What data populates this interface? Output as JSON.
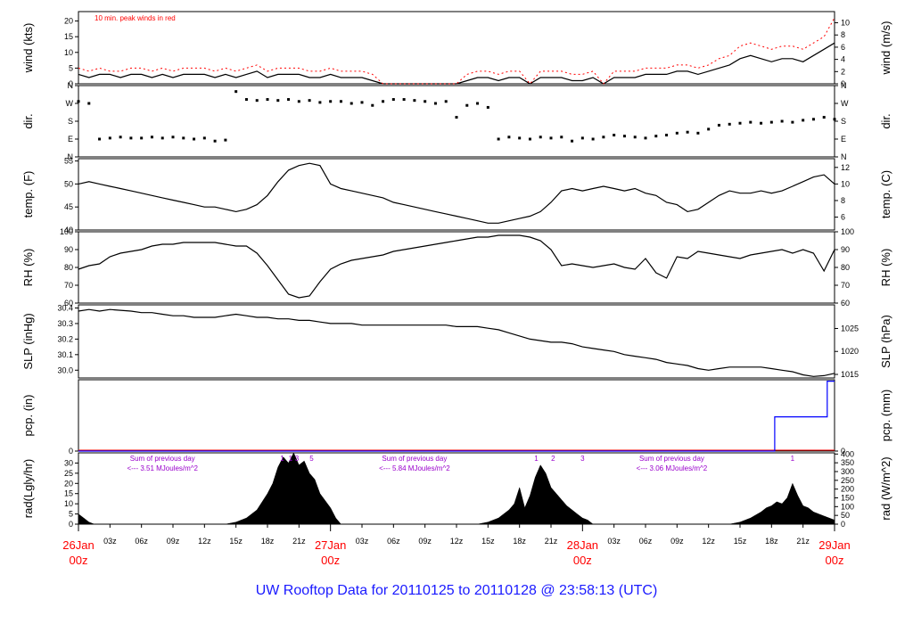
{
  "title": "UW Rooftop Data for 20110125  to  20110128 @ 23:58:13  (UTC)",
  "colors": {
    "title": "#1a1aff",
    "red": "#ff0000",
    "purple": "#9900cc",
    "blue": "#0000ff",
    "black": "#000000"
  },
  "x_axis": {
    "ticks": [
      "26Jan 00z",
      "03z",
      "06z",
      "09z",
      "12z",
      "15z",
      "18z",
      "21z",
      "27Jan 00z",
      "03z",
      "06z",
      "09z",
      "12z",
      "15z",
      "18z",
      "21z",
      "28Jan 00z",
      "03z",
      "06z",
      "09z",
      "12z",
      "15z",
      "18z",
      "21z",
      "29Jan 00z"
    ],
    "major": [
      {
        "hour": 0,
        "day": "26Jan",
        "time": "00z"
      },
      {
        "hour": 24,
        "day": "27Jan",
        "time": "00z"
      },
      {
        "hour": 48,
        "day": "28Jan",
        "time": "00z"
      },
      {
        "hour": 72,
        "day": "29Jan",
        "time": "00z"
      }
    ],
    "minor": [
      {
        "hour": 3,
        "label": "03z"
      },
      {
        "hour": 6,
        "label": "06z"
      },
      {
        "hour": 9,
        "label": "09z"
      },
      {
        "hour": 12,
        "label": "12z"
      },
      {
        "hour": 15,
        "label": "15z"
      },
      {
        "hour": 18,
        "label": "18z"
      },
      {
        "hour": 21,
        "label": "21z"
      },
      {
        "hour": 27,
        "label": "03z"
      },
      {
        "hour": 30,
        "label": "06z"
      },
      {
        "hour": 33,
        "label": "09z"
      },
      {
        "hour": 36,
        "label": "12z"
      },
      {
        "hour": 39,
        "label": "15z"
      },
      {
        "hour": 42,
        "label": "18z"
      },
      {
        "hour": 45,
        "label": "21z"
      },
      {
        "hour": 51,
        "label": "03z"
      },
      {
        "hour": 54,
        "label": "06z"
      },
      {
        "hour": 57,
        "label": "09z"
      },
      {
        "hour": 60,
        "label": "12z"
      },
      {
        "hour": 63,
        "label": "15z"
      },
      {
        "hour": 66,
        "label": "18z"
      },
      {
        "hour": 69,
        "label": "21z"
      }
    ]
  },
  "chart_data": [
    {
      "type": "line",
      "panel": "wind",
      "ylabel_left": "wind (kts)",
      "ylabel_right": "wind (m/s)",
      "ylim": [
        0,
        23
      ],
      "yticks_left": [
        "0",
        "5",
        "10",
        "15",
        "20"
      ],
      "yticks_right": [
        "0",
        "2",
        "4",
        "6",
        "8",
        "10"
      ],
      "annotation": "10 min. peak winds in red",
      "x": [
        0,
        1,
        2,
        3,
        4,
        5,
        6,
        7,
        8,
        9,
        10,
        11,
        12,
        13,
        14,
        15,
        16,
        17,
        18,
        19,
        20,
        21,
        22,
        23,
        24,
        25,
        26,
        27,
        28,
        29,
        30,
        31,
        32,
        33,
        34,
        35,
        36,
        37,
        38,
        39,
        40,
        41,
        42,
        43,
        44,
        45,
        46,
        47,
        48,
        49,
        50,
        51,
        52,
        53,
        54,
        55,
        56,
        57,
        58,
        59,
        60,
        61,
        62,
        63,
        64,
        65,
        66,
        67,
        68,
        69,
        70,
        71,
        72
      ],
      "series": [
        {
          "values": [
            3,
            2,
            3,
            3,
            2,
            3,
            3,
            2,
            3,
            2,
            3,
            3,
            3,
            2,
            3,
            2,
            3,
            4,
            2,
            3,
            3,
            3,
            2,
            2,
            3,
            2,
            2,
            2,
            1,
            0,
            0,
            0,
            0,
            0,
            0,
            0,
            0,
            1,
            2,
            2,
            1,
            2,
            2,
            0,
            2,
            2,
            2,
            1,
            1,
            2,
            0,
            2,
            2,
            2,
            3,
            3,
            3,
            4,
            4,
            3,
            4,
            5,
            6,
            8,
            9,
            8,
            7,
            8,
            8,
            7,
            9,
            11,
            13
          ]
        },
        {
          "values": [
            5,
            4,
            5,
            4,
            4,
            5,
            5,
            4,
            5,
            4,
            5,
            5,
            5,
            4,
            5,
            4,
            5,
            6,
            4,
            5,
            5,
            5,
            4,
            4,
            5,
            4,
            4,
            4,
            3,
            0,
            0,
            0,
            0,
            0,
            0,
            0,
            0,
            3,
            4,
            4,
            3,
            4,
            4,
            0,
            4,
            4,
            4,
            3,
            3,
            4,
            0,
            4,
            4,
            4,
            5,
            5,
            5,
            6,
            6,
            5,
            6,
            8,
            9,
            12,
            13,
            12,
            11,
            12,
            12,
            11,
            13,
            15,
            21
          ]
        }
      ]
    },
    {
      "type": "scatter",
      "panel": "dir",
      "ylabel_left": "dir.",
      "ylabel_right": "dir.",
      "ylim": [
        0,
        360
      ],
      "yticks_left": [
        "N",
        "E",
        "S",
        "W",
        "N"
      ],
      "yticks_right": [
        "N",
        "E",
        "S",
        "W",
        "N"
      ],
      "x": [
        0,
        1,
        2,
        3,
        4,
        5,
        6,
        7,
        8,
        9,
        10,
        11,
        12,
        13,
        14,
        15,
        16,
        17,
        18,
        19,
        20,
        21,
        22,
        23,
        24,
        25,
        26,
        27,
        28,
        29,
        30,
        31,
        32,
        33,
        34,
        35,
        36,
        37,
        38,
        39,
        40,
        41,
        42,
        43,
        44,
        45,
        46,
        47,
        48,
        49,
        50,
        51,
        52,
        53,
        54,
        55,
        56,
        57,
        58,
        59,
        60,
        61,
        62,
        63,
        64,
        65,
        66,
        67,
        68,
        69,
        70,
        71,
        72
      ],
      "values": [
        280,
        270,
        90,
        95,
        100,
        95,
        95,
        100,
        95,
        100,
        95,
        90,
        95,
        80,
        85,
        330,
        290,
        285,
        290,
        285,
        290,
        280,
        285,
        275,
        280,
        280,
        270,
        275,
        260,
        280,
        290,
        290,
        285,
        280,
        270,
        280,
        200,
        260,
        270,
        250,
        90,
        100,
        95,
        90,
        100,
        95,
        100,
        80,
        95,
        90,
        100,
        110,
        105,
        100,
        95,
        105,
        110,
        120,
        125,
        120,
        140,
        160,
        165,
        170,
        175,
        170,
        175,
        180,
        175,
        185,
        190,
        200,
        190
      ]
    },
    {
      "type": "line",
      "panel": "temp",
      "ylabel_left": "temp. (F)",
      "ylabel_right": "temp. (C)",
      "ylim": [
        40,
        55.5
      ],
      "yticks_left": [
        "40",
        "45",
        "50",
        "55"
      ],
      "yticks_right": [
        "6",
        "8",
        "10",
        "12"
      ],
      "x": [
        0,
        1,
        2,
        3,
        4,
        5,
        6,
        7,
        8,
        9,
        10,
        11,
        12,
        13,
        14,
        15,
        16,
        17,
        18,
        19,
        20,
        21,
        22,
        23,
        24,
        25,
        26,
        27,
        28,
        29,
        30,
        31,
        32,
        33,
        34,
        35,
        36,
        37,
        38,
        39,
        40,
        41,
        42,
        43,
        44,
        45,
        46,
        47,
        48,
        49,
        50,
        51,
        52,
        53,
        54,
        55,
        56,
        57,
        58,
        59,
        60,
        61,
        62,
        63,
        64,
        65,
        66,
        67,
        68,
        69,
        70,
        71,
        72
      ],
      "values": [
        50,
        50.5,
        50,
        49.5,
        49,
        48.5,
        48,
        47.5,
        47,
        46.5,
        46,
        45.5,
        45,
        45,
        44.5,
        44,
        44.5,
        45.5,
        47.5,
        50.5,
        53,
        54,
        54.5,
        54,
        50,
        49,
        48.5,
        48,
        47.5,
        47,
        46,
        45.5,
        45,
        44.5,
        44,
        43.5,
        43,
        42.5,
        42,
        41.5,
        41.5,
        42,
        42.5,
        43,
        44,
        46,
        48.5,
        49,
        48.5,
        49,
        49.5,
        49,
        48.5,
        49,
        48,
        47.5,
        46,
        45.5,
        44,
        44.5,
        46,
        47.5,
        48.5,
        48,
        48,
        48.5,
        48,
        48.5,
        49.5,
        50.5,
        51.5,
        52,
        50
      ]
    },
    {
      "type": "line",
      "panel": "rh",
      "ylabel_left": "RH (%)",
      "ylabel_right": "RH (%)",
      "ylim": [
        60,
        100
      ],
      "yticks_left": [
        "60",
        "70",
        "80",
        "90",
        "100"
      ],
      "yticks_right": [
        "60",
        "70",
        "80",
        "90",
        "100"
      ],
      "x": [
        0,
        1,
        2,
        3,
        4,
        5,
        6,
        7,
        8,
        9,
        10,
        11,
        12,
        13,
        14,
        15,
        16,
        17,
        18,
        19,
        20,
        21,
        22,
        23,
        24,
        25,
        26,
        27,
        28,
        29,
        30,
        31,
        32,
        33,
        34,
        35,
        36,
        37,
        38,
        39,
        40,
        41,
        42,
        43,
        44,
        45,
        46,
        47,
        48,
        49,
        50,
        51,
        52,
        53,
        54,
        55,
        56,
        57,
        58,
        59,
        60,
        61,
        62,
        63,
        64,
        65,
        66,
        67,
        68,
        69,
        70,
        71,
        72
      ],
      "values": [
        79,
        81,
        82,
        86,
        88,
        89,
        90,
        92,
        93,
        93,
        94,
        94,
        94,
        94,
        93,
        92,
        92,
        88,
        81,
        73,
        65,
        63,
        64,
        72,
        79,
        82,
        84,
        85,
        86,
        87,
        89,
        90,
        91,
        92,
        93,
        94,
        95,
        96,
        97,
        97,
        98,
        98,
        98,
        97,
        95,
        90,
        81,
        82,
        81,
        80,
        81,
        82,
        80,
        79,
        85,
        77,
        74,
        86,
        85,
        89,
        88,
        87,
        86,
        85,
        87,
        88,
        89,
        90,
        88,
        90,
        88,
        78,
        90
      ]
    },
    {
      "type": "line",
      "panel": "slp",
      "ylabel_left": "SLP (inHg)",
      "ylabel_right": "SLP (hPa)",
      "ylim": [
        29.95,
        30.42
      ],
      "yticks_left": [
        "30.0",
        "30.1",
        "30.2",
        "30.3",
        "30.4"
      ],
      "yticks_right": [
        "1015",
        "1020",
        "1025"
      ],
      "x": [
        0,
        1,
        2,
        3,
        4,
        5,
        6,
        7,
        8,
        9,
        10,
        11,
        12,
        13,
        14,
        15,
        16,
        17,
        18,
        19,
        20,
        21,
        22,
        23,
        24,
        25,
        26,
        27,
        28,
        29,
        30,
        31,
        32,
        33,
        34,
        35,
        36,
        37,
        38,
        39,
        40,
        41,
        42,
        43,
        44,
        45,
        46,
        47,
        48,
        49,
        50,
        51,
        52,
        53,
        54,
        55,
        56,
        57,
        58,
        59,
        60,
        61,
        62,
        63,
        64,
        65,
        66,
        67,
        68,
        69,
        70,
        71,
        72
      ],
      "values": [
        30.38,
        30.39,
        30.38,
        30.39,
        30.385,
        30.38,
        30.37,
        30.37,
        30.36,
        30.35,
        30.35,
        30.34,
        30.34,
        30.34,
        30.35,
        30.36,
        30.35,
        30.34,
        30.34,
        30.33,
        30.33,
        30.32,
        30.32,
        30.31,
        30.3,
        30.3,
        30.3,
        30.29,
        30.29,
        30.29,
        30.29,
        30.29,
        30.29,
        30.29,
        30.29,
        30.29,
        30.28,
        30.28,
        30.28,
        30.27,
        30.26,
        30.24,
        30.22,
        30.2,
        30.19,
        30.18,
        30.18,
        30.17,
        30.15,
        30.14,
        30.13,
        30.12,
        30.1,
        30.09,
        30.08,
        30.07,
        30.05,
        30.04,
        30.03,
        30.01,
        30.0,
        30.01,
        30.02,
        30.02,
        30.02,
        30.02,
        30.01,
        30.0,
        29.99,
        29.97,
        29.96,
        29.965,
        29.98
      ]
    },
    {
      "type": "line",
      "panel": "pcp",
      "ylabel_left": "pcp. (in)",
      "ylabel_right": "pcp. (mm)",
      "ylim": [
        0,
        1
      ],
      "yticks_left": [
        "0"
      ],
      "yticks_right": [
        "0"
      ],
      "x": [
        0,
        66.3,
        66.3,
        71.3,
        71.3,
        72
      ],
      "values": [
        0,
        0,
        0.48,
        0.48,
        0.98,
        0.98
      ]
    },
    {
      "type": "area",
      "panel": "rad",
      "ylabel_left": "rad(Lgly/hr)",
      "ylabel_right": "rad (W/m^2)",
      "ylim": [
        0,
        35
      ],
      "yticks_left": [
        "0",
        "5",
        "10",
        "15",
        "20",
        "25",
        "30"
      ],
      "yticks_right": [
        "0",
        "50",
        "100",
        "150",
        "200",
        "250",
        "300",
        "350",
        "400"
      ],
      "notes": [
        {
          "hour": 8,
          "line1": "Sum of previous day",
          "line2": "<--- 3.51 MJoules/m^2"
        },
        {
          "hour": 32,
          "line1": "Sum of previous day",
          "line2": "<--- 5.84 MJoules/m^2"
        },
        {
          "hour": 56.5,
          "line1": "Sum of previous day",
          "line2": "<--- 3.06 MJoules/m^2"
        }
      ],
      "markers": [
        {
          "hour": 19.4,
          "label": "1"
        },
        {
          "hour": 20.2,
          "label": "1"
        },
        {
          "hour": 20.8,
          "label": "3"
        },
        {
          "hour": 22.2,
          "label": "5"
        },
        {
          "hour": 43.6,
          "label": "1"
        },
        {
          "hour": 45.2,
          "label": "2"
        },
        {
          "hour": 48,
          "label": "3"
        },
        {
          "hour": 68,
          "label": "1"
        }
      ],
      "x": [
        0,
        0.5,
        1,
        1.5,
        2,
        14,
        15,
        16,
        17,
        18,
        18.5,
        19,
        19.5,
        20,
        20.5,
        21,
        21.5,
        22,
        22.5,
        23,
        24,
        24.5,
        25,
        38,
        39,
        40,
        41,
        41.5,
        42,
        42.5,
        43,
        43.5,
        44,
        44.5,
        45,
        45.5,
        46,
        46.5,
        47,
        47.5,
        48,
        48.5,
        49,
        62,
        63,
        64,
        65,
        65.5,
        66,
        66.5,
        67,
        67.5,
        68,
        68.5,
        69,
        69.5,
        70,
        70.5,
        71,
        72
      ],
      "values": [
        5,
        3,
        1,
        0,
        0,
        0,
        1,
        3,
        7,
        15,
        20,
        28,
        33,
        30,
        35,
        29,
        31,
        25,
        22,
        15,
        8,
        3,
        0,
        0,
        1,
        3,
        7,
        10,
        18,
        8,
        14,
        23,
        29,
        25,
        18,
        15,
        12,
        9,
        7,
        5,
        3,
        2,
        0,
        0,
        1,
        3,
        6,
        8,
        9,
        11,
        10,
        13,
        20,
        14,
        9,
        8,
        6,
        5,
        4,
        2
      ]
    }
  ]
}
